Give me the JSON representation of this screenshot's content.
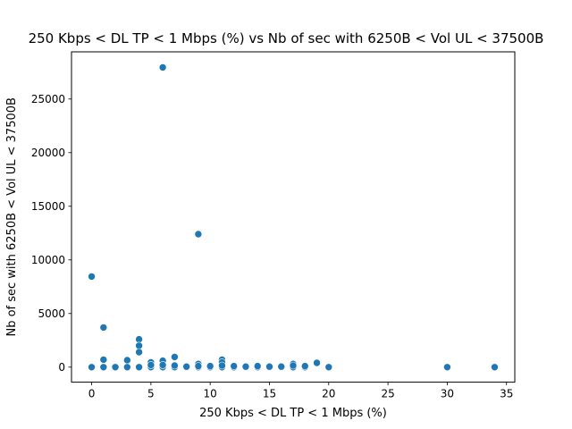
{
  "chart_data": {
    "type": "scatter",
    "title": "250 Kbps < DL TP < 1 Mbps (%) vs Nb of sec with 6250B < Vol UL < 37500B",
    "xlabel": "250 Kbps < DL TP < 1 Mbps (%)",
    "ylabel": "Nb of sec with 6250B < Vol UL < 37500B",
    "xlim": [
      -1.7,
      35.7
    ],
    "ylim": [
      -1400,
      29400
    ],
    "xticks": [
      0,
      5,
      10,
      15,
      20,
      25,
      30,
      35
    ],
    "yticks": [
      0,
      5000,
      10000,
      15000,
      20000,
      25000
    ],
    "xtick_labels": [
      "0",
      "5",
      "10",
      "15",
      "20",
      "25",
      "30",
      "35"
    ],
    "ytick_labels": [
      "0",
      "5000",
      "10000",
      "15000",
      "20000",
      "25000"
    ],
    "grid": false,
    "color": "#1f77b4",
    "x": [
      6,
      9,
      0,
      1,
      4,
      4,
      4,
      7,
      11,
      3,
      19,
      17,
      5,
      6,
      9,
      11,
      0,
      1,
      2,
      3,
      4,
      5,
      6,
      7,
      8,
      9,
      10,
      11,
      12,
      13,
      14,
      15,
      16,
      17,
      18,
      20,
      30,
      34,
      5,
      1,
      7,
      10,
      14,
      18,
      12,
      6,
      8,
      13,
      16,
      15,
      17,
      9,
      11
    ],
    "y": [
      27950,
      12400,
      8450,
      3700,
      2600,
      2000,
      1400,
      950,
      700,
      650,
      400,
      300,
      450,
      600,
      300,
      450,
      0,
      0,
      0,
      0,
      0,
      0,
      0,
      0,
      0,
      0,
      0,
      0,
      0,
      0,
      0,
      0,
      0,
      0,
      0,
      0,
      0,
      0,
      200,
      700,
      150,
      100,
      100,
      100,
      100,
      200,
      50,
      50,
      50,
      50,
      150,
      100,
      150
    ]
  }
}
